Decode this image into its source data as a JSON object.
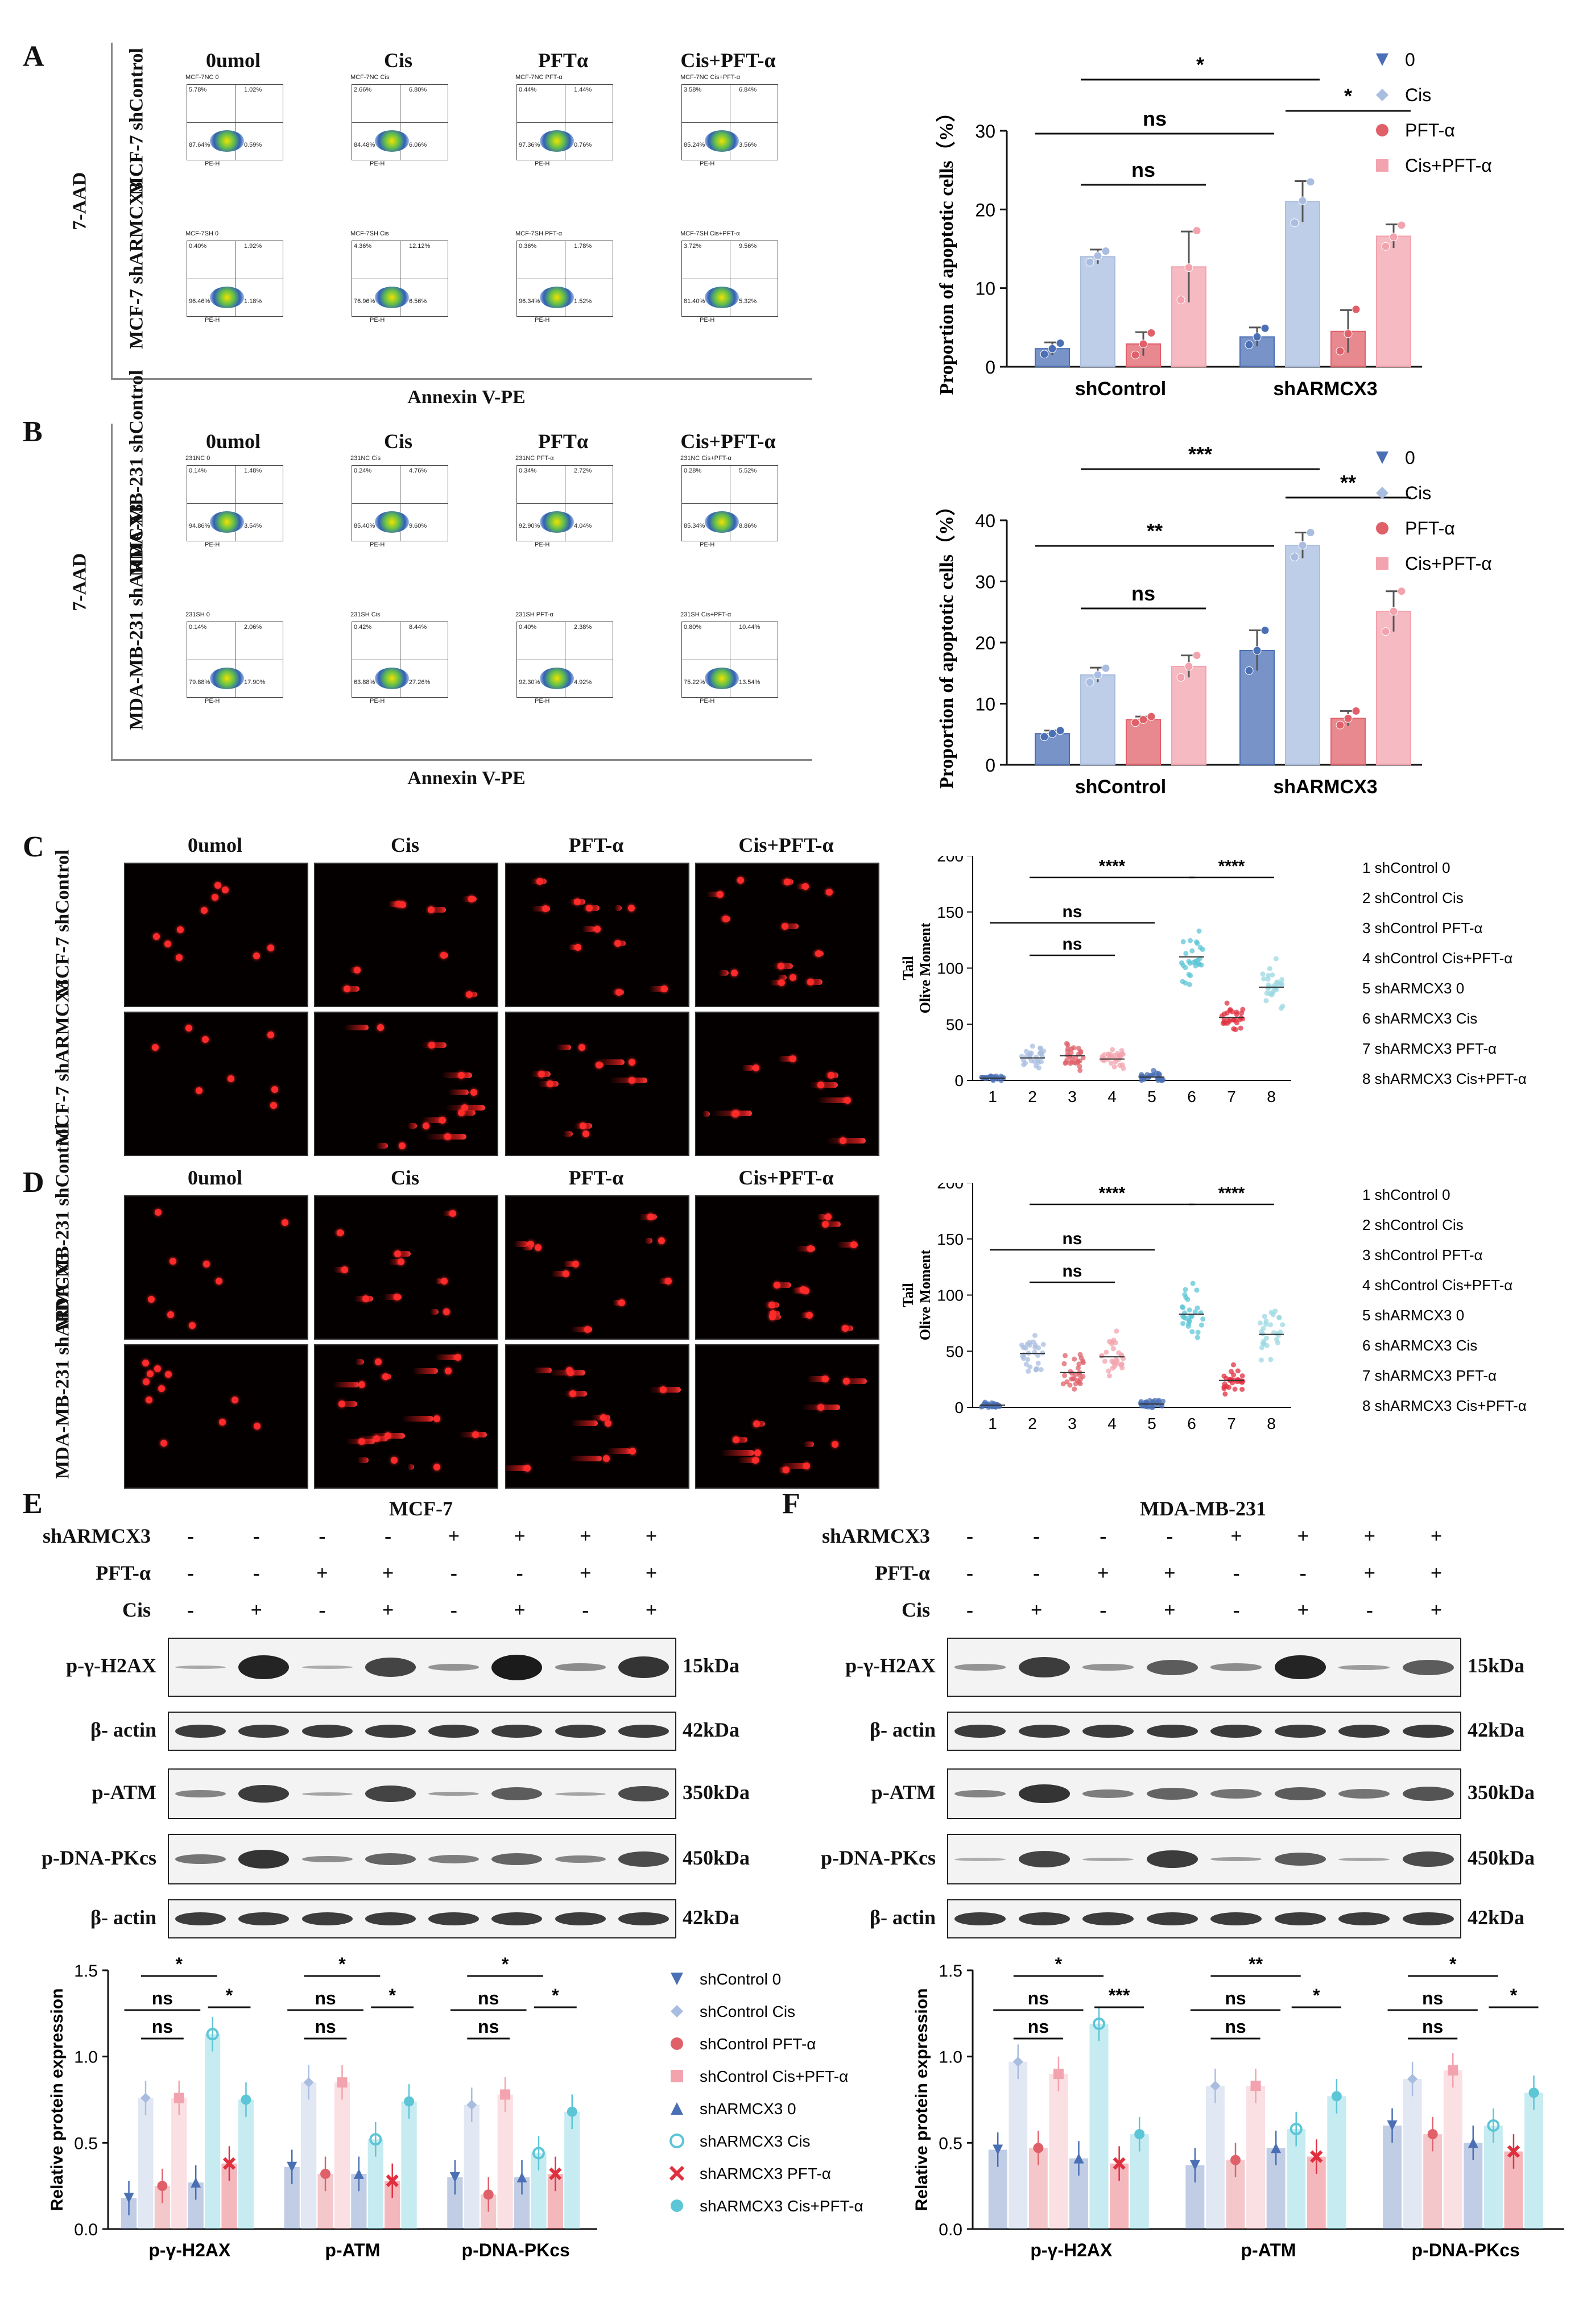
{
  "panel_letters": {
    "A": "A",
    "B": "B",
    "C": "C",
    "D": "D",
    "E": "E",
    "F": "F"
  },
  "flow": {
    "headers_A": [
      "0umol",
      "Cis",
      "PFTα",
      "Cis+PFT-α"
    ],
    "headers_B": [
      "0umol",
      "Cis",
      "PFTα",
      "Cis+PFT-α"
    ],
    "row_labels_A": [
      "MCF-7 shControl",
      "MCF-7 shARMCX3"
    ],
    "row_labels_B": [
      "MDA-MB-231 shControl",
      "MDA-MB-231 shARMCX3"
    ],
    "y_label": "7-AAD",
    "x_label": "Annexin V-PE",
    "plot_ylabel": "PE-Cy5.5-H",
    "plot_xlabel": "PE-H",
    "plots_A": [
      {
        "title": "MCF-7NC 0",
        "q1": "5.78%",
        "q2": "1.02%",
        "q3": "87.64%",
        "q4": "0.59%"
      },
      {
        "title": "MCF-7NC Cis",
        "q1": "2.66%",
        "q2": "6.80%",
        "q3": "84.48%",
        "q4": "6.06%"
      },
      {
        "title": "MCF-7NC PFT-α",
        "q1": "0.44%",
        "q2": "1.44%",
        "q3": "97.36%",
        "q4": "0.76%"
      },
      {
        "title": "MCF-7NC Cis+PFT-α",
        "q1": "3.58%",
        "q2": "6.84%",
        "q3": "85.24%",
        "q4": "3.56%"
      },
      {
        "title": "MCF-7SH 0",
        "q1": "0.40%",
        "q2": "1.92%",
        "q3": "96.46%",
        "q4": "1.18%"
      },
      {
        "title": "MCF-7SH Cis",
        "q1": "4.36%",
        "q2": "12.12%",
        "q3": "76.96%",
        "q4": "6.56%"
      },
      {
        "title": "MCF-7SH PFT-α",
        "q1": "0.36%",
        "q2": "1.78%",
        "q3": "96.34%",
        "q4": "1.52%"
      },
      {
        "title": "MCF-7SH Cis+PFT-α",
        "q1": "3.72%",
        "q2": "9.56%",
        "q3": "81.40%",
        "q4": "5.32%"
      }
    ],
    "plots_B": [
      {
        "title": "231NC 0",
        "q1": "0.14%",
        "q2": "1.48%",
        "q3": "94.86%",
        "q4": "3.54%"
      },
      {
        "title": "231NC Cis",
        "q1": "0.24%",
        "q2": "4.76%",
        "q3": "85.40%",
        "q4": "9.60%"
      },
      {
        "title": "231NC PFT-α",
        "q1": "0.34%",
        "q2": "2.72%",
        "q3": "92.90%",
        "q4": "4.04%"
      },
      {
        "title": "231NC Cis+PFT-α",
        "q1": "0.28%",
        "q2": "5.52%",
        "q3": "85.34%",
        "q4": "8.86%"
      },
      {
        "title": "231SH 0",
        "q1": "0.14%",
        "q2": "2.06%",
        "q3": "79.88%",
        "q4": "17.90%"
      },
      {
        "title": "231SH Cis",
        "q1": "0.42%",
        "q2": "8.44%",
        "q3": "63.88%",
        "q4": "27.26%"
      },
      {
        "title": "231SH PFT-α",
        "q1": "0.40%",
        "q2": "2.38%",
        "q3": "92.30%",
        "q4": "4.92%"
      },
      {
        "title": "231SH Cis+PFT-α",
        "q1": "0.80%",
        "q2": "10.44%",
        "q3": "75.22%",
        "q4": "13.54%"
      }
    ]
  },
  "comet": {
    "headers_C": [
      "0umol",
      "Cis",
      "PFT-α",
      "Cis+PFT-α"
    ],
    "headers_D": [
      "0umol",
      "Cis",
      "PFT-α",
      "Cis+PFT-α"
    ],
    "row_labels_C": [
      "MCF-7 shControl",
      "MCF-7 shARMCX3"
    ],
    "row_labels_D": [
      "MDA-MB-231 shControl",
      "MDA-MB-231 shARMCX3"
    ]
  },
  "western": {
    "title_E": "MCF-7",
    "title_F": "MDA-MB-231",
    "cond_labels": [
      "shARMCX3",
      "PFT-α",
      "Cis"
    ],
    "signs": [
      [
        "-",
        "-",
        "-",
        "-",
        "+",
        "+",
        "+",
        "+"
      ],
      [
        "-",
        "-",
        "+",
        "+",
        "-",
        "-",
        "+",
        "+"
      ],
      [
        "-",
        "+",
        "-",
        "+",
        "-",
        "+",
        "-",
        "+"
      ]
    ],
    "rows": [
      {
        "label": "p-γ-H2AX",
        "kda": "15kDa"
      },
      {
        "label": "β- actin",
        "kda": "42kDa"
      },
      {
        "label": "p-ATM",
        "kda": "350kDa"
      },
      {
        "label": "p-DNA-PKcs",
        "kda": "450kDa"
      },
      {
        "label": "β- actin",
        "kda": "42kDa"
      }
    ]
  },
  "legend_E": {
    "items": [
      "shControl 0",
      "shControl Cis",
      "shControl PFT-α",
      "shControl Cis+PFT-α",
      "shARMCX3 0",
      "shARMCX3 Cis",
      "shARMCX3 PFT-α",
      "shARMCX3 Cis+PFT-α"
    ]
  },
  "colors": {
    "dark_blue": "#4a6fb5",
    "light_blue": "#a9bde0",
    "red": "#e0606a",
    "pink": "#f2a3ae",
    "cyan": "#5cc6d6"
  },
  "chart_data": [
    {
      "id": "A_bar",
      "type": "bar",
      "categories": [
        "shControl",
        "shARMCX3"
      ],
      "ylabel": "Proportion of apoptotic cells（%）",
      "ylim": [
        0,
        30
      ],
      "yticks": [
        0,
        10,
        20,
        30
      ],
      "series": [
        {
          "name": "0",
          "values": [
            2.3,
            3.8
          ],
          "err": [
            0.8,
            1.2
          ],
          "points": [
            [
              1.6,
              2.3,
              3.0
            ],
            [
              2.8,
              3.8,
              4.9
            ]
          ]
        },
        {
          "name": "Cis",
          "values": [
            14.0,
            21.0
          ],
          "err": [
            0.9,
            2.6
          ],
          "points": [
            [
              13.3,
              14.1,
              14.7
            ],
            [
              18.3,
              21.1,
              23.5
            ]
          ]
        },
        {
          "name": "PFT-α",
          "values": [
            2.9,
            4.5
          ],
          "err": [
            1.5,
            2.7
          ],
          "points": [
            [
              1.5,
              2.9,
              4.3
            ],
            [
              2.0,
              4.2,
              7.3
            ]
          ]
        },
        {
          "name": "Cis+PFT-α",
          "values": [
            12.7,
            16.6
          ],
          "err": [
            4.5,
            1.5
          ],
          "points": [
            [
              8.5,
              12.6,
              17.3
            ],
            [
              15.3,
              16.5,
              18.0
            ]
          ]
        }
      ],
      "annotations": [
        {
          "text": "*",
          "from": [
            0,
            1
          ],
          "to": [
            1,
            1
          ]
        },
        {
          "text": "ns",
          "from": [
            0,
            0
          ],
          "to": [
            1,
            0
          ]
        },
        {
          "text": "*",
          "from": [
            1,
            1
          ],
          "to": [
            1,
            3
          ]
        },
        {
          "text": "ns",
          "from": [
            0,
            1
          ],
          "to": [
            0,
            3
          ]
        }
      ]
    },
    {
      "id": "B_bar",
      "type": "bar",
      "categories": [
        "shControl",
        "shARMCX3"
      ],
      "ylabel": "Proportion of apoptotic cells（%）",
      "ylim": [
        0,
        40
      ],
      "yticks": [
        0,
        10,
        20,
        30,
        40
      ],
      "series": [
        {
          "name": "0",
          "values": [
            5.1,
            18.7
          ],
          "err": [
            0.5,
            3.3
          ],
          "points": [
            [
              4.6,
              5.1,
              5.6
            ],
            [
              15.4,
              18.7,
              22.0
            ]
          ]
        },
        {
          "name": "Cis",
          "values": [
            14.7,
            35.9
          ],
          "err": [
            1.2,
            2.1
          ],
          "points": [
            [
              13.5,
              14.7,
              15.8
            ],
            [
              34.0,
              35.9,
              38.0
            ]
          ]
        },
        {
          "name": "PFT-α",
          "values": [
            7.4,
            7.6
          ],
          "err": [
            0.5,
            1.2
          ],
          "points": [
            [
              6.9,
              7.4,
              7.9
            ],
            [
              6.5,
              7.6,
              8.8
            ]
          ]
        },
        {
          "name": "Cis+PFT-α",
          "values": [
            16.1,
            25.1
          ],
          "err": [
            1.8,
            3.3
          ],
          "points": [
            [
              14.3,
              16.1,
              17.9
            ],
            [
              21.8,
              25.1,
              28.4
            ]
          ]
        }
      ],
      "annotations": [
        {
          "text": "***",
          "from": [
            0,
            1
          ],
          "to": [
            1,
            1
          ]
        },
        {
          "text": "**",
          "from": [
            0,
            0
          ],
          "to": [
            1,
            0
          ]
        },
        {
          "text": "**",
          "from": [
            1,
            1
          ],
          "to": [
            1,
            3
          ]
        },
        {
          "text": "ns",
          "from": [
            0,
            1
          ],
          "to": [
            0,
            3
          ]
        }
      ]
    },
    {
      "id": "C_scatter",
      "type": "scatter",
      "ylabel": "Tail Olive Moment",
      "categories": [
        "1",
        "2",
        "3",
        "4",
        "5",
        "6",
        "7",
        "8"
      ],
      "ylim": [
        0,
        200
      ],
      "yticks": [
        0,
        50,
        100,
        150,
        200
      ],
      "medians": [
        2,
        20,
        22,
        19,
        3,
        110,
        56,
        83
      ],
      "spread": [
        2,
        8,
        9,
        6,
        4,
        20,
        10,
        14
      ],
      "legend": [
        "1 shControl 0",
        "2 shControl Cis",
        "3 shControl PFT-α",
        "4 shControl Cis+PFT-α",
        "5 shARMCX3 0",
        "6 shARMCX3 Cis",
        "7 shARMCX3 PFT-α",
        "8 shARMCX3 Cis+PFT-α"
      ],
      "annotations": [
        {
          "text": "****",
          "from": 2,
          "to": 6
        },
        {
          "text": "****",
          "from": 6,
          "to": 8
        },
        {
          "text": "ns",
          "from": 1,
          "to": 5
        },
        {
          "text": "ns",
          "from": 2,
          "to": 4
        }
      ]
    },
    {
      "id": "D_scatter",
      "type": "scatter",
      "ylabel": "Tail Olive Moment",
      "categories": [
        "1",
        "2",
        "3",
        "4",
        "5",
        "6",
        "7",
        "8"
      ],
      "ylim": [
        0,
        200
      ],
      "yticks": [
        0,
        50,
        100,
        150,
        200
      ],
      "medians": [
        2,
        48,
        31,
        45,
        3,
        83,
        24,
        65
      ],
      "spread": [
        2,
        14,
        12,
        14,
        3,
        18,
        9,
        15
      ],
      "legend": [
        "1 shControl 0",
        "2 shControl Cis",
        "3 shControl PFT-α",
        "4 shControl Cis+PFT-α",
        "5 shARMCX3 0",
        "6 shARMCX3 Cis",
        "7 shARMCX3 PFT-α",
        "8 shARMCX3 Cis+PFT-α"
      ],
      "annotations": [
        {
          "text": "****",
          "from": 2,
          "to": 6
        },
        {
          "text": "****",
          "from": 6,
          "to": 8
        },
        {
          "text": "ns",
          "from": 1,
          "to": 5
        },
        {
          "text": "ns",
          "from": 2,
          "to": 4
        }
      ]
    },
    {
      "id": "E_bar",
      "type": "bar",
      "ylabel": "Relative protein expression",
      "categories": [
        "p-γ-H2AX",
        "p-ATM",
        "p-DNA-PKcs"
      ],
      "ylim": [
        0,
        1.5
      ],
      "yticks": [
        0.0,
        0.5,
        1.0,
        1.5
      ],
      "series": [
        {
          "name": "shControl 0",
          "values": [
            0.18,
            0.36,
            0.3
          ]
        },
        {
          "name": "shControl Cis",
          "values": [
            0.76,
            0.85,
            0.72
          ]
        },
        {
          "name": "shControl PFT-α",
          "values": [
            0.25,
            0.32,
            0.2
          ]
        },
        {
          "name": "shControl Cis+PFT-α",
          "values": [
            0.76,
            0.85,
            0.78
          ]
        },
        {
          "name": "shARMCX3 0",
          "values": [
            0.27,
            0.32,
            0.3
          ]
        },
        {
          "name": "shARMCX3 Cis",
          "values": [
            1.13,
            0.52,
            0.44
          ]
        },
        {
          "name": "shARMCX3 PFT-α",
          "values": [
            0.38,
            0.28,
            0.32
          ]
        },
        {
          "name": "shARMCX3 Cis+PFT-α",
          "values": [
            0.75,
            0.74,
            0.68
          ]
        }
      ],
      "annotations": [
        {
          "text": "*",
          "group": 0,
          "from": 1,
          "to": 5
        },
        {
          "text": "ns",
          "group": 0,
          "from": 0,
          "to": 4
        },
        {
          "text": "ns",
          "group": 0,
          "from": 1,
          "to": 3
        },
        {
          "text": "*",
          "group": 0,
          "from": 5,
          "to": 7
        },
        {
          "text": "*",
          "group": 1,
          "from": 1,
          "to": 5
        },
        {
          "text": "ns",
          "group": 1,
          "from": 0,
          "to": 4
        },
        {
          "text": "ns",
          "group": 1,
          "from": 1,
          "to": 3
        },
        {
          "text": "*",
          "group": 1,
          "from": 5,
          "to": 7
        },
        {
          "text": "*",
          "group": 2,
          "from": 1,
          "to": 5
        },
        {
          "text": "ns",
          "group": 2,
          "from": 0,
          "to": 4
        },
        {
          "text": "ns",
          "group": 2,
          "from": 1,
          "to": 3
        },
        {
          "text": "*",
          "group": 2,
          "from": 5,
          "to": 7
        }
      ]
    },
    {
      "id": "F_bar",
      "type": "bar",
      "ylabel": "Relative protein expression",
      "categories": [
        "p-γ-H2AX",
        "p-ATM",
        "p-DNA-PKcs"
      ],
      "ylim": [
        0,
        1.5
      ],
      "yticks": [
        0.0,
        0.5,
        1.0,
        1.5
      ],
      "series": [
        {
          "name": "shControl 0",
          "values": [
            0.46,
            0.37,
            0.6
          ]
        },
        {
          "name": "shControl Cis",
          "values": [
            0.97,
            0.83,
            0.87
          ]
        },
        {
          "name": "shControl PFT-α",
          "values": [
            0.47,
            0.4,
            0.55
          ]
        },
        {
          "name": "shControl Cis+PFT-α",
          "values": [
            0.9,
            0.83,
            0.92
          ]
        },
        {
          "name": "shARMCX3 0",
          "values": [
            0.41,
            0.47,
            0.5
          ]
        },
        {
          "name": "shARMCX3 Cis",
          "values": [
            1.19,
            0.58,
            0.6
          ]
        },
        {
          "name": "shARMCX3 PFT-α",
          "values": [
            0.38,
            0.42,
            0.45
          ]
        },
        {
          "name": "shARMCX3 Cis+PFT-α",
          "values": [
            0.55,
            0.77,
            0.79
          ]
        }
      ],
      "annotations": [
        {
          "text": "*",
          "group": 0,
          "from": 1,
          "to": 5
        },
        {
          "text": "ns",
          "group": 0,
          "from": 0,
          "to": 4
        },
        {
          "text": "ns",
          "group": 0,
          "from": 1,
          "to": 3
        },
        {
          "text": "***",
          "group": 0,
          "from": 5,
          "to": 7
        },
        {
          "text": "**",
          "group": 1,
          "from": 1,
          "to": 5
        },
        {
          "text": "ns",
          "group": 1,
          "from": 0,
          "to": 4
        },
        {
          "text": "ns",
          "group": 1,
          "from": 1,
          "to": 3
        },
        {
          "text": "*",
          "group": 1,
          "from": 5,
          "to": 7
        },
        {
          "text": "*",
          "group": 2,
          "from": 1,
          "to": 5
        },
        {
          "text": "ns",
          "group": 2,
          "from": 0,
          "to": 4
        },
        {
          "text": "ns",
          "group": 2,
          "from": 1,
          "to": 3
        },
        {
          "text": "*",
          "group": 2,
          "from": 5,
          "to": 7
        }
      ]
    }
  ]
}
